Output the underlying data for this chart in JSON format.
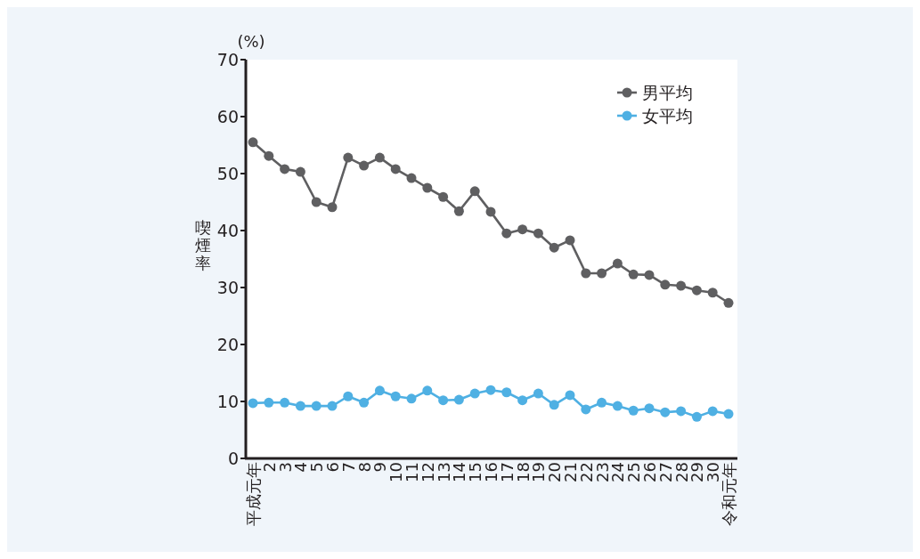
{
  "chart_data": {
    "type": "line",
    "ylabel": "喫煙率",
    "annotations": [
      "(%)"
    ],
    "categories": [
      "平成元年",
      "2",
      "3",
      "4",
      "5",
      "6",
      "7",
      "8",
      "9",
      "10",
      "11",
      "12",
      "13",
      "14",
      "15",
      "16",
      "17",
      "18",
      "19",
      "20",
      "21",
      "22",
      "23",
      "24",
      "25",
      "26",
      "27",
      "28",
      "29",
      "30",
      "令和元年"
    ],
    "series": [
      {
        "name": "男平均",
        "color": "#5f5f61",
        "values": [
          55.5,
          53.1,
          50.8,
          50.3,
          45.0,
          44.1,
          52.8,
          51.4,
          52.8,
          50.8,
          49.2,
          47.5,
          45.9,
          43.4,
          46.9,
          43.3,
          39.5,
          40.2,
          39.5,
          37.0,
          38.3,
          32.5,
          32.5,
          34.2,
          32.3,
          32.2,
          30.5,
          30.3,
          29.5,
          29.1,
          27.3
        ]
      },
      {
        "name": "女平均",
        "color": "#4fb0e3",
        "values": [
          9.7,
          9.8,
          9.8,
          9.2,
          9.2,
          9.2,
          10.9,
          9.8,
          11.9,
          10.9,
          10.5,
          11.9,
          10.2,
          10.3,
          11.4,
          12.0,
          11.6,
          10.2,
          11.4,
          9.4,
          11.1,
          8.6,
          9.8,
          9.2,
          8.4,
          8.8,
          8.1,
          8.3,
          7.3,
          8.3,
          7.8
        ]
      }
    ],
    "ylim": [
      0,
      70
    ],
    "yticks": [
      0,
      10,
      20,
      30,
      40,
      50,
      60,
      70
    ],
    "legend": "top right",
    "grid": false,
    "marker": "circle",
    "line_style": "solid"
  }
}
